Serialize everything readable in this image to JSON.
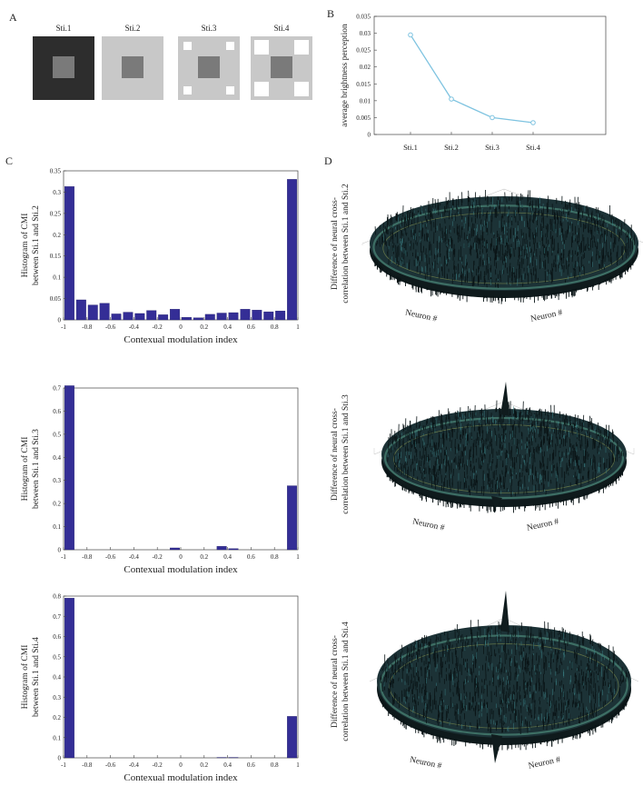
{
  "panels": {
    "a": "A",
    "b": "B",
    "c": "C",
    "d": "D"
  },
  "stimuli": [
    {
      "label": "Sti.1",
      "bg": "#2d2d2d",
      "center": "#7a7a7a",
      "corners": 0
    },
    {
      "label": "Sti.2",
      "bg": "#c8c8c8",
      "center": "#7a7a7a",
      "corners": 0
    },
    {
      "label": "Sti.3",
      "bg": "#c8c8c8",
      "center": "#7a7a7a",
      "corners": 1
    },
    {
      "label": "Sti.4",
      "bg": "#c8c8c8",
      "center": "#7a7a7a",
      "corners": 2
    }
  ],
  "chart_data": [
    {
      "type": "line",
      "categories": [
        "Sti.1",
        "Sti.2",
        "Sti.3",
        "Sti.4"
      ],
      "values": [
        0.0295,
        0.0105,
        0.005,
        0.0035
      ],
      "ylabel": "average brightness perception",
      "ylim": [
        0,
        0.035
      ],
      "yticks": [
        "0",
        "0.005",
        "0.01",
        "0.015",
        "0.02",
        "0.025",
        "0.03",
        "0.035"
      ],
      "color": "#7ec3e0"
    },
    {
      "type": "bar",
      "ylabel_lines": [
        "Histogram of CMI",
        "between Sti.1 and Sti.2"
      ],
      "xlabel": "Contexual modulation index",
      "ylim": [
        0,
        0.35
      ],
      "yticks": [
        "0",
        "0.05",
        "0.1",
        "0.15",
        "0.2",
        "0.25",
        "0.3",
        "0.35"
      ],
      "xticks": [
        "-1",
        "-0.8",
        "-0.6",
        "-0.4",
        "-0.2",
        "0",
        "0.2",
        "0.4",
        "0.6",
        "0.8",
        "1"
      ],
      "centers": [
        -0.95,
        -0.85,
        -0.75,
        -0.65,
        -0.55,
        -0.45,
        -0.35,
        -0.25,
        -0.15,
        -0.05,
        0.05,
        0.15,
        0.25,
        0.35,
        0.45,
        0.55,
        0.65,
        0.75,
        0.85,
        0.95
      ],
      "values": [
        0.313,
        0.047,
        0.035,
        0.039,
        0.014,
        0.018,
        0.015,
        0.022,
        0.012,
        0.025,
        0.006,
        0.005,
        0.013,
        0.016,
        0.017,
        0.025,
        0.023,
        0.019,
        0.021,
        0.33
      ],
      "color": "#342e96"
    },
    {
      "type": "bar",
      "ylabel_lines": [
        "Histogram of CMI",
        "between Sti.1 and Sti.3"
      ],
      "xlabel": "Contexual modulation index",
      "ylim": [
        0,
        0.7
      ],
      "yticks": [
        "0",
        "0.1",
        "0.2",
        "0.3",
        "0.4",
        "0.5",
        "0.6",
        "0.7"
      ],
      "xticks": [
        "-1",
        "-0.8",
        "-0.6",
        "-0.4",
        "-0.2",
        "0",
        "0.2",
        "0.4",
        "0.6",
        "0.8",
        "1"
      ],
      "centers": [
        -0.95,
        -0.85,
        -0.75,
        -0.65,
        -0.55,
        -0.45,
        -0.35,
        -0.25,
        -0.15,
        -0.05,
        0.05,
        0.15,
        0.25,
        0.35,
        0.45,
        0.55,
        0.65,
        0.75,
        0.85,
        0.95
      ],
      "values": [
        0.71,
        0,
        0,
        0,
        0,
        0,
        0,
        0,
        0,
        0.008,
        0,
        0,
        0,
        0.015,
        0.005,
        0,
        0,
        0,
        0,
        0.277
      ],
      "color": "#342e96"
    },
    {
      "type": "bar",
      "ylabel_lines": [
        "Histogram of CMI",
        "between Sti.1 and Sti.4"
      ],
      "xlabel": "Contexual modulation index",
      "ylim": [
        0,
        0.8
      ],
      "yticks": [
        "0",
        "0.1",
        "0.2",
        "0.3",
        "0.4",
        "0.5",
        "0.6",
        "0.7",
        "0.8"
      ],
      "xticks": [
        "-1",
        "-0.8",
        "-0.6",
        "-0.4",
        "-0.2",
        "0",
        "0.2",
        "0.4",
        "0.6",
        "0.8",
        "1"
      ],
      "centers": [
        -0.95,
        -0.85,
        -0.75,
        -0.65,
        -0.55,
        -0.45,
        -0.35,
        -0.25,
        -0.15,
        -0.05,
        0.05,
        0.15,
        0.25,
        0.35,
        0.45,
        0.55,
        0.65,
        0.75,
        0.85,
        0.95
      ],
      "values": [
        0.79,
        0,
        0,
        0,
        0,
        0,
        0,
        0,
        0,
        0,
        0,
        0,
        0,
        0.002,
        0.002,
        0,
        0,
        0,
        0,
        0.205
      ],
      "color": "#342e96"
    }
  ],
  "surfaces": [
    {
      "ylabel_lines": [
        "Difference of neural cross-",
        "correlation between Sti.1 and Sti.2"
      ],
      "x_axis": "Neuron #",
      "y_axis": "Neuron #",
      "spike": false
    },
    {
      "ylabel_lines": [
        "Difference of neural cross-",
        "correlation between Sti.1 and Sti.3"
      ],
      "x_axis": "Neuron #",
      "y_axis": "Neuron #",
      "spike": true
    },
    {
      "ylabel_lines": [
        "Difference of neural cross-",
        "correlation between Sti.1 and Sti.4"
      ],
      "x_axis": "Neuron #",
      "y_axis": "Neuron #",
      "spike": true
    }
  ]
}
